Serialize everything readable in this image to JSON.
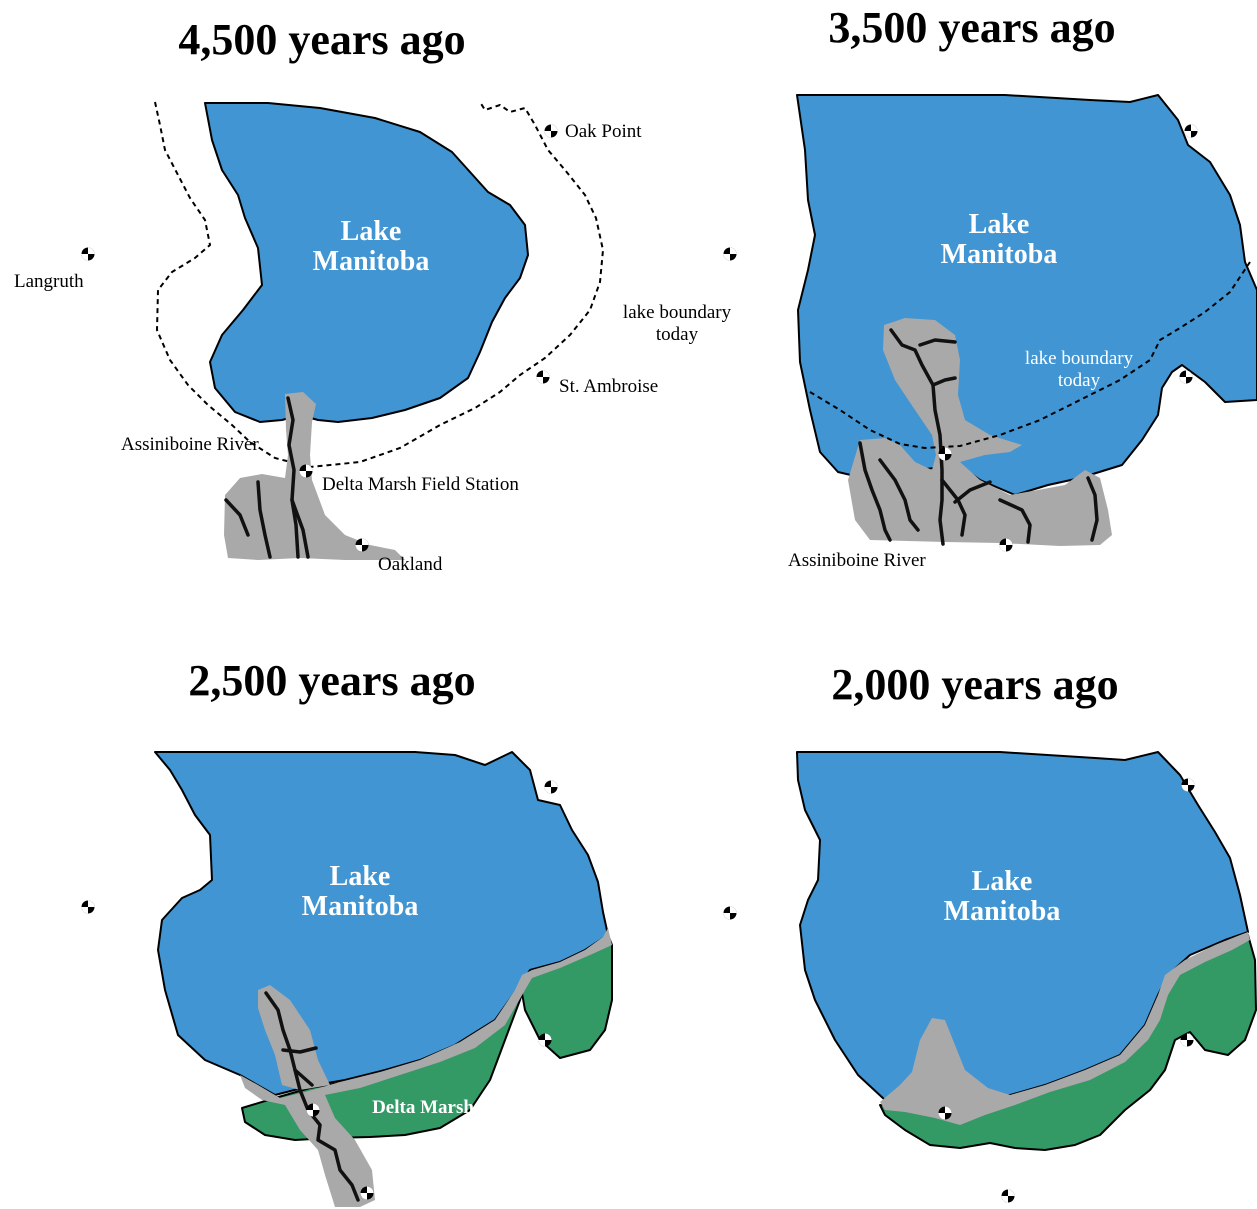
{
  "panels": [
    {
      "title": "4,500 years ago",
      "lake_label_line1": "Lake",
      "lake_label_line2": "Manitoba",
      "places": {
        "oak_point": "Oak Point",
        "langruth": "Langruth",
        "lake_boundary_line1": "lake boundary",
        "lake_boundary_line2": "today",
        "st_ambroise": "St. Ambroise",
        "assiniboine_river": "Assiniboine River",
        "field_station": "Delta Marsh Field Station",
        "oakland": "Oakland"
      }
    },
    {
      "title": "3,500 years ago",
      "lake_label_line1": "Lake",
      "lake_label_line2": "Manitoba",
      "places": {
        "lake_boundary_line1": "lake boundary",
        "lake_boundary_line2": "today",
        "assiniboine_river": "Assiniboine River"
      }
    },
    {
      "title": "2,500 years ago",
      "lake_label_line1": "Lake",
      "lake_label_line2": "Manitoba",
      "places": {
        "delta_marsh": "Delta Marsh"
      }
    },
    {
      "title": "2,000 years ago",
      "lake_label_line1": "Lake",
      "lake_label_line2": "Manitoba",
      "places": {}
    }
  ],
  "colors": {
    "lake": "#4095d2",
    "delta_sediment": "#a9a9a9",
    "marsh": "#339a66",
    "river": "#111111"
  },
  "icons": {
    "town_marker": "town-marker-icon"
  }
}
